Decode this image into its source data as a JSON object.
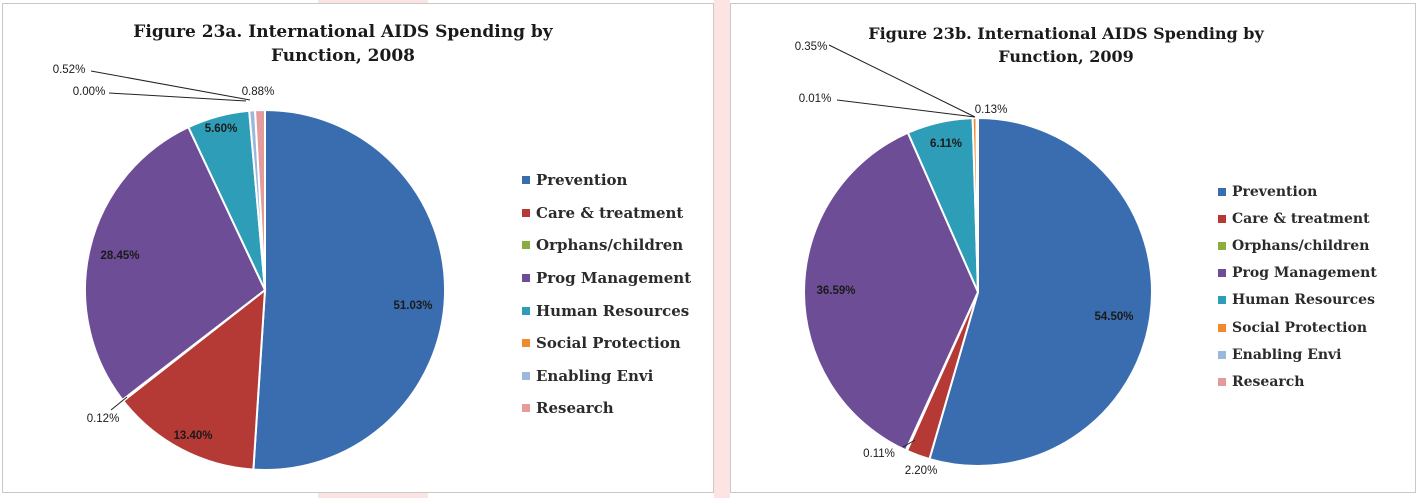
{
  "chart_data": [
    {
      "type": "pie",
      "title_line1": "Figure 23a. International AIDS Spending by",
      "title_line2": "Function, 2008",
      "legend_position": "right",
      "categories": [
        "Prevention",
        "Care & treatment",
        "Orphans/children",
        "Prog Management",
        "Human Resources",
        "Social Protection",
        "Enabling Envi",
        "Research"
      ],
      "values": [
        51.03,
        13.4,
        0.12,
        28.45,
        5.6,
        0.0,
        0.52,
        0.88
      ],
      "data_labels": [
        "51.03%",
        "13.40%",
        "0.12%",
        "28.45%",
        "5.60%",
        "0.00%",
        "0.52%",
        "0.88%"
      ],
      "colors": [
        "#3a6db0",
        "#b53a36",
        "#8aad42",
        "#6d4d96",
        "#2e9db8",
        "#ef8a2e",
        "#9bb8dc",
        "#e39b9b"
      ]
    },
    {
      "type": "pie",
      "title_line1": "Figure 23b. International AIDS Spending by",
      "title_line2": "Function, 2009",
      "legend_position": "right",
      "categories": [
        "Prevention",
        "Care & treatment",
        "Orphans/children",
        "Prog Management",
        "Human Resources",
        "Social Protection",
        "Enabling Envi",
        "Research"
      ],
      "values": [
        54.5,
        2.2,
        0.11,
        36.59,
        6.11,
        0.35,
        0.01,
        0.13
      ],
      "data_labels": [
        "54.50%",
        "2.20%",
        "0.11%",
        "36.59%",
        "6.11%",
        "0.35%",
        "0.01%",
        "0.13%"
      ],
      "colors": [
        "#3a6db0",
        "#b53a36",
        "#8aad42",
        "#6d4d96",
        "#2e9db8",
        "#ef8a2e",
        "#9bb8dc",
        "#e39b9b"
      ]
    }
  ]
}
